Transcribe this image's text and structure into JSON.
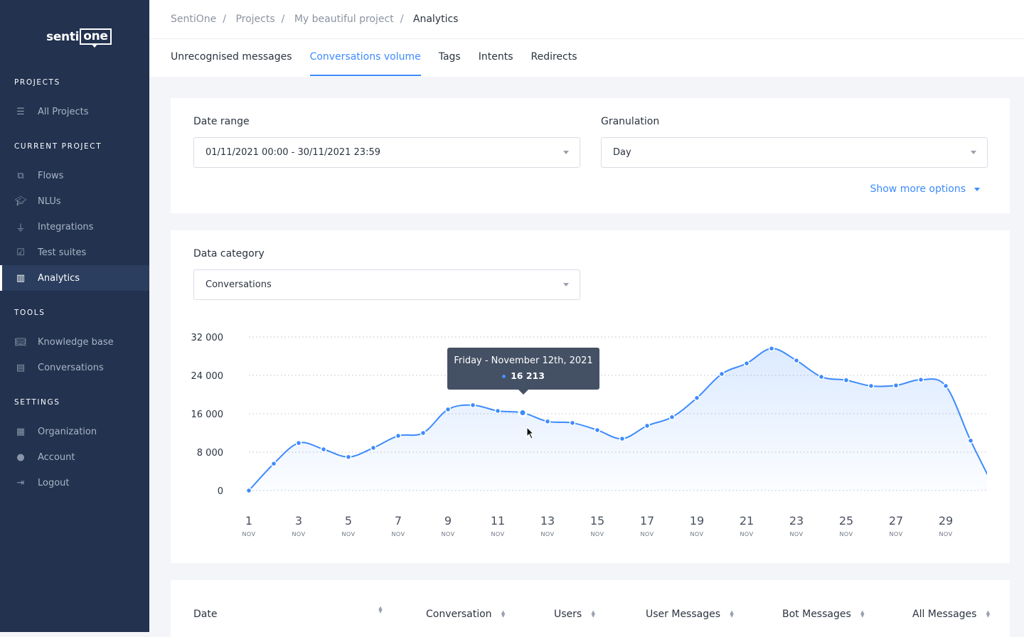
{
  "brand": {
    "logo_text_left": "senti",
    "logo_text_right": "one"
  },
  "sidebar": {
    "sections": [
      {
        "title": "PROJECTS"
      },
      {
        "title": "CURRENT PROJECT"
      },
      {
        "title": "TOOLS"
      },
      {
        "title": "SETTINGS"
      }
    ],
    "items": [
      {
        "label": "All Projects",
        "icon": "list-icon"
      },
      {
        "label": "Flows",
        "icon": "flows-icon"
      },
      {
        "label": "NLUs",
        "icon": "graduation-cap-icon"
      },
      {
        "label": "Integrations",
        "icon": "plug-icon"
      },
      {
        "label": "Test suites",
        "icon": "checklist-icon"
      },
      {
        "label": "Analytics",
        "icon": "bar-chart-icon",
        "active": true
      },
      {
        "label": "Knowledge base",
        "icon": "book-icon"
      },
      {
        "label": "Conversations",
        "icon": "chat-icon"
      },
      {
        "label": "Organization",
        "icon": "building-icon"
      },
      {
        "label": "Account",
        "icon": "user-icon"
      },
      {
        "label": "Logout",
        "icon": "logout-icon"
      }
    ]
  },
  "breadcrumb": [
    "SentiOne",
    "Projects",
    "My beautiful project",
    "Analytics"
  ],
  "tabs": [
    {
      "label": "Unrecognised messages"
    },
    {
      "label": "Conversations volume",
      "active": true
    },
    {
      "label": "Tags"
    },
    {
      "label": "Intents"
    },
    {
      "label": "Redirects"
    }
  ],
  "filters": {
    "date_range_label": "Date range",
    "date_range_value": "01/11/2021 00:00 - 30/11/2021 23:59",
    "granulation_label": "Granulation",
    "granulation_value": "Day",
    "show_more": "Show more options"
  },
  "category": {
    "label": "Data category",
    "value": "Conversations"
  },
  "tooltip": {
    "title": "Friday - November 12th, 2021",
    "value": "16 213"
  },
  "chart_data": {
    "type": "area",
    "x": [
      1,
      2,
      3,
      4,
      5,
      6,
      7,
      8,
      9,
      10,
      11,
      12,
      13,
      14,
      15,
      16,
      17,
      18,
      19,
      20,
      21,
      22,
      23,
      24,
      25,
      26,
      27,
      28,
      29,
      30,
      31
    ],
    "values": [
      0,
      5600,
      9900,
      8600,
      7000,
      8900,
      11400,
      12000,
      16900,
      17800,
      16600,
      16213,
      14400,
      14100,
      12600,
      10800,
      13500,
      15300,
      19300,
      24300,
      26500,
      29600,
      27100,
      23700,
      23000,
      21800,
      21900,
      23100,
      21800,
      10400,
      0
    ],
    "ylim": [
      0,
      32000
    ],
    "yticks": [
      "0",
      "8 000",
      "16 000",
      "24 000",
      "32 000"
    ],
    "xticks": [
      "1",
      "3",
      "5",
      "7",
      "9",
      "11",
      "13",
      "15",
      "17",
      "19",
      "21",
      "23",
      "25",
      "27",
      "29"
    ],
    "xtick_sub": "NOV",
    "grid": true,
    "color": "#3d8bfd"
  },
  "table": {
    "headers": [
      "Date",
      "Conversation",
      "Users",
      "User Messages",
      "Bot Messages",
      "All Messages"
    ]
  }
}
